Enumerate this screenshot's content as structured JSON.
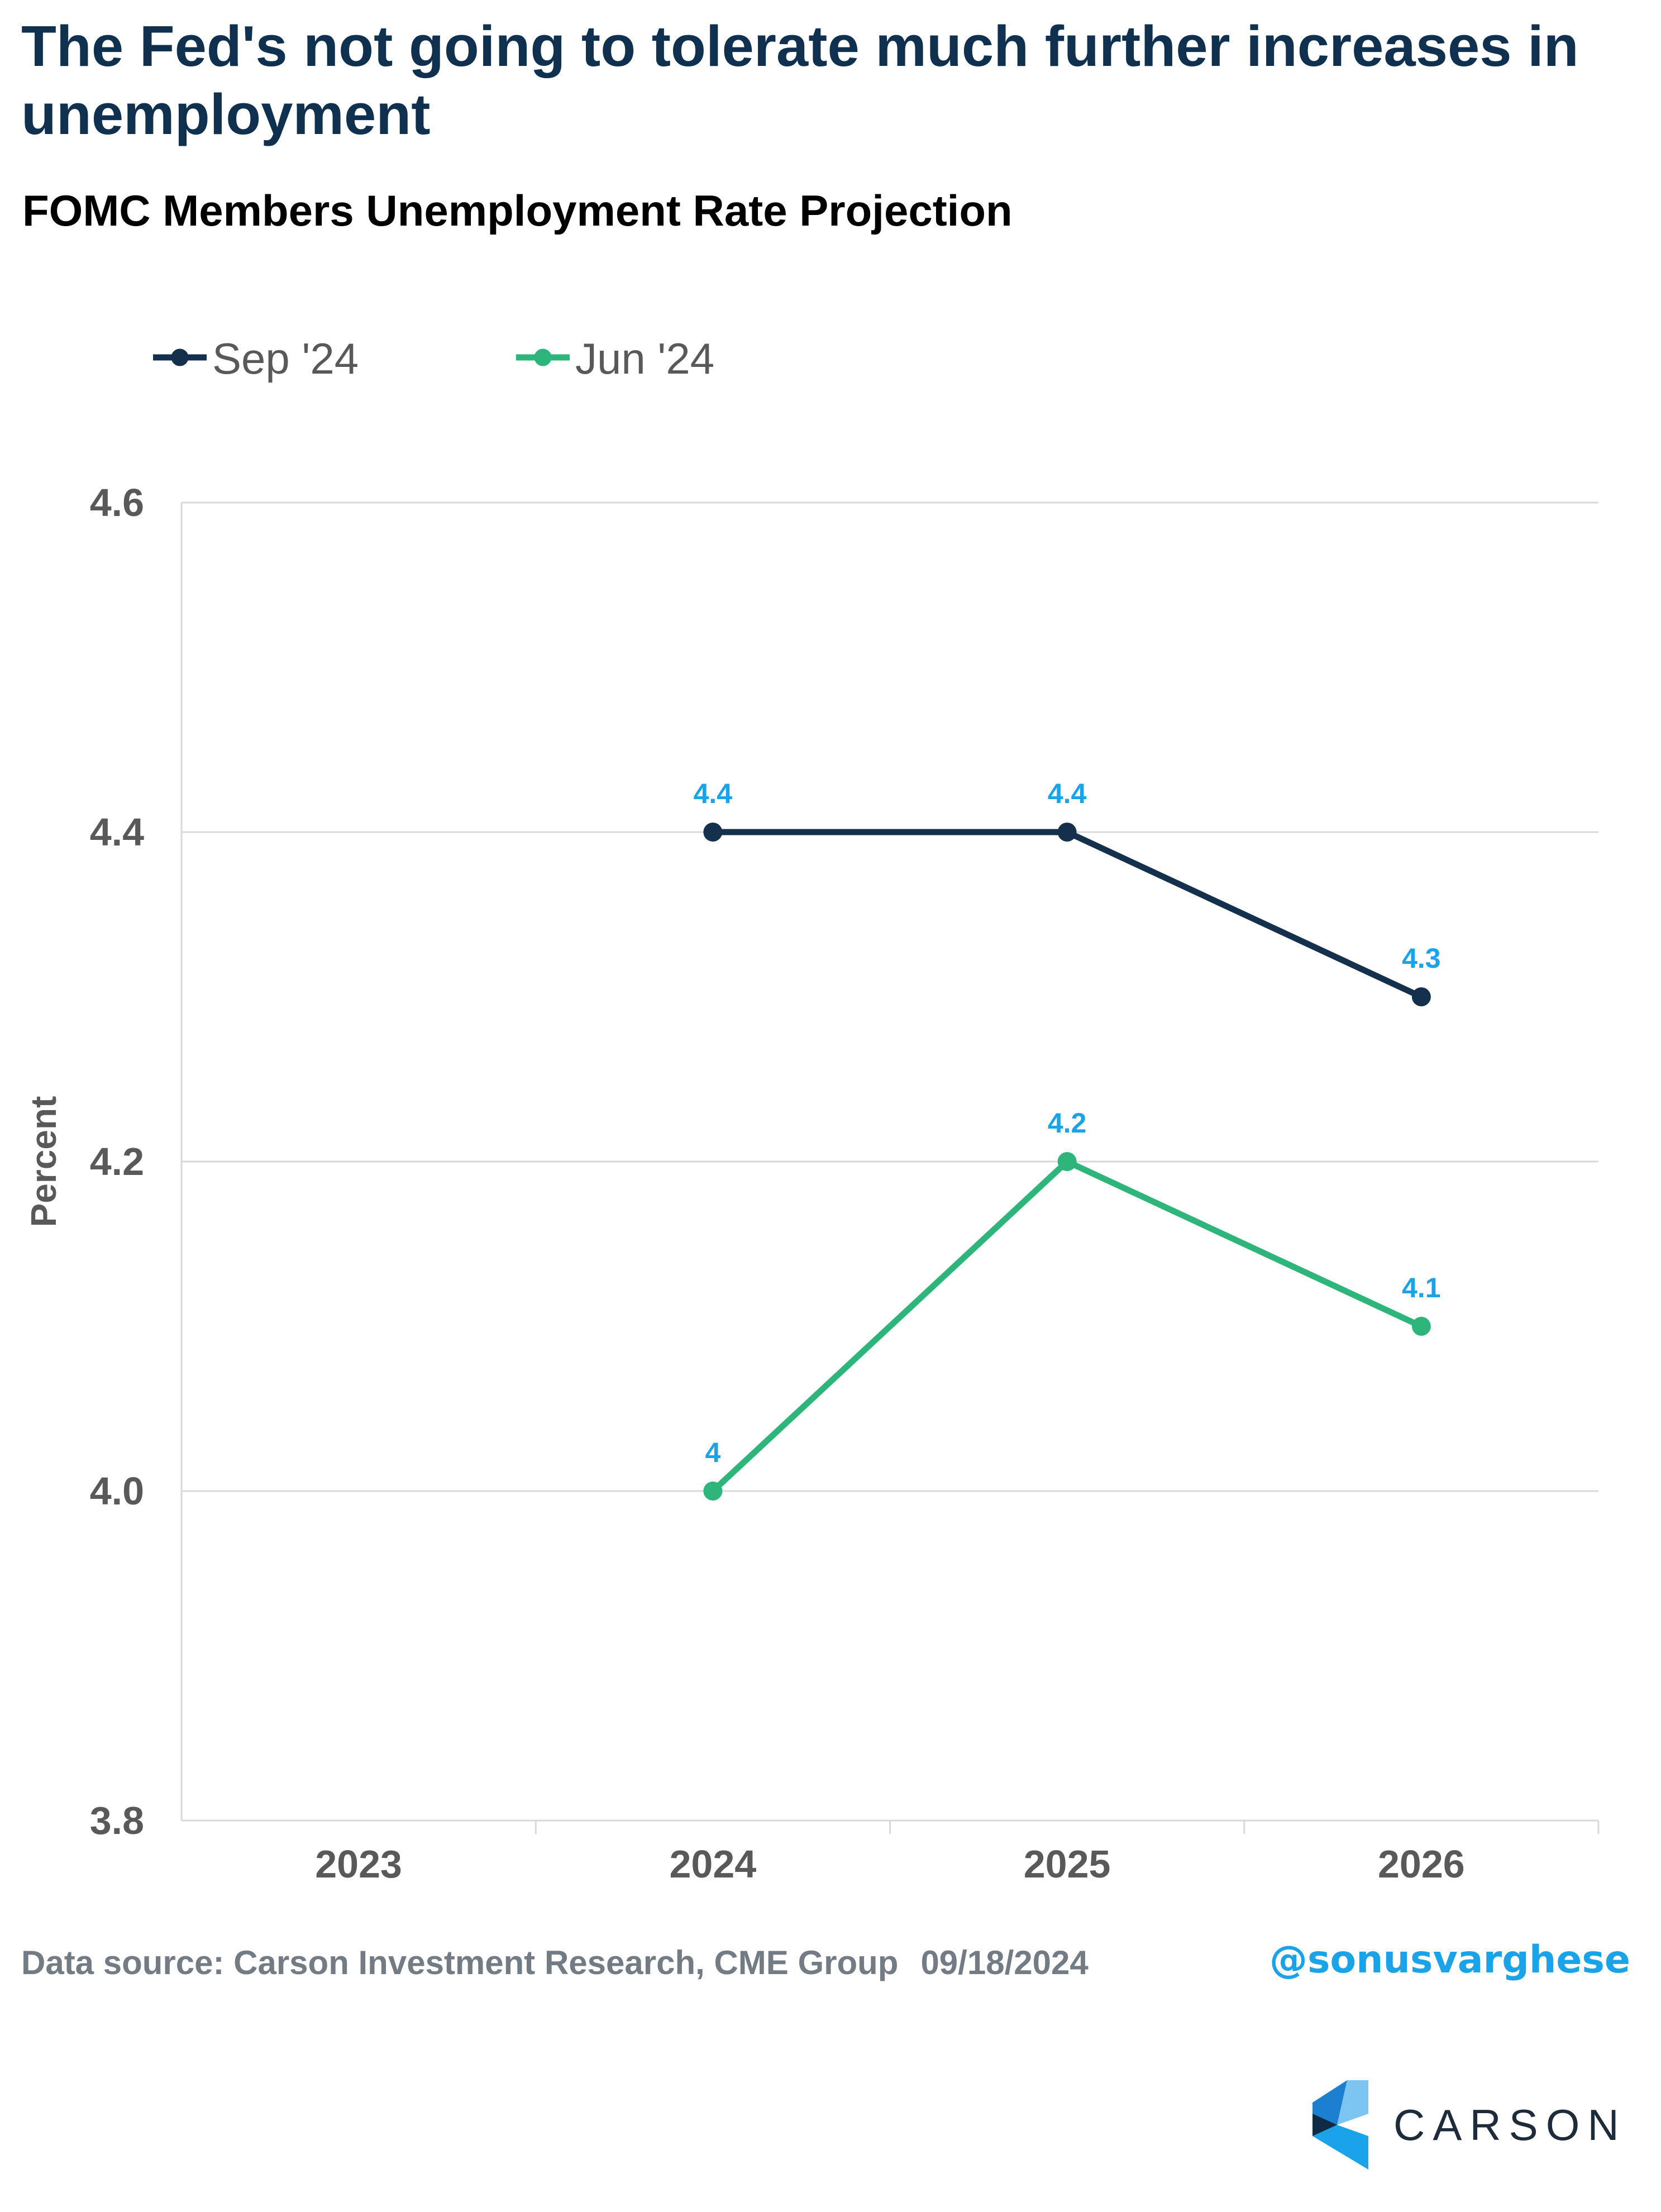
{
  "header": {
    "title": "The Fed's not going to tolerate much further increases in unemployment",
    "subtitle": "FOMC Members Unemployment Rate Projection"
  },
  "legend": {
    "items": [
      {
        "label": "Sep '24",
        "color": "#14304d"
      },
      {
        "label": "Jun '24",
        "color": "#2db57b"
      }
    ]
  },
  "footer": {
    "source": "Data source: Carson Investment Research, CME Group",
    "date": "09/18/2024",
    "handle": "@sonusvarghese"
  },
  "logo": {
    "wordmark": "CARSON",
    "icon": "carson-chevron-icon"
  },
  "colors": {
    "title": "#10304f",
    "data_label": "#1aa3e8",
    "grid": "#d9d9d9",
    "axis_text": "#595959"
  },
  "chart_data": {
    "type": "line",
    "x": [
      "2023",
      "2024",
      "2025",
      "2026"
    ],
    "ylabel": "Percent",
    "xlabel": "",
    "ylim": [
      3.8,
      4.6
    ],
    "yticks": [
      "3.8",
      "4.0",
      "4.2",
      "4.4",
      "4.6"
    ],
    "grid": true,
    "legend_position": "top-left",
    "series": [
      {
        "name": "Sep '24",
        "color": "#14304d",
        "values": [
          null,
          4.4,
          4.4,
          4.3
        ],
        "labels": [
          "",
          "4.4",
          "4.4",
          "4.3"
        ]
      },
      {
        "name": "Jun '24",
        "color": "#2db57b",
        "values": [
          null,
          4.0,
          4.2,
          4.1
        ],
        "labels": [
          "",
          "4",
          "4.2",
          "4.1"
        ]
      }
    ]
  }
}
